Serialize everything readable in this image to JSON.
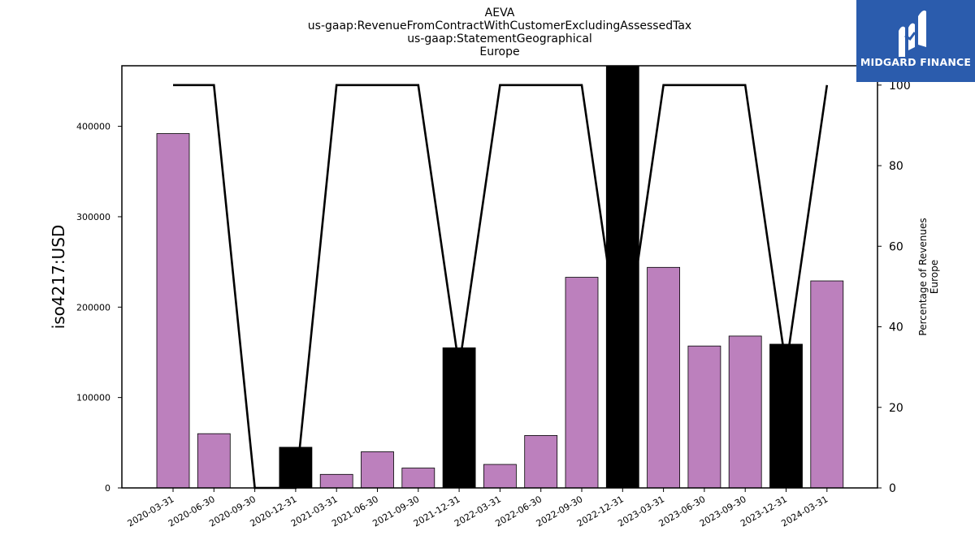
{
  "chart_data": {
    "type": "bar",
    "title": [
      "AEVA",
      "us-gaap:RevenueFromContractWithCustomerExcludingAssessedTax",
      "us-gaap:StatementGeographical",
      "Europe"
    ],
    "ylabel": "iso4217:USD",
    "y2label": [
      "Percentage of Revenues",
      "Europe"
    ],
    "ylim": [
      0,
      467000
    ],
    "y2lim": [
      0,
      104.8
    ],
    "yticks": [
      0,
      100000,
      200000,
      300000,
      400000
    ],
    "y2ticks": [
      0,
      20,
      40,
      60,
      80,
      100
    ],
    "categories": [
      "2020-03-31",
      "2020-06-30",
      "2020-09-30",
      "2020-12-31",
      "2021-03-31",
      "2021-06-30",
      "2021-09-30",
      "2021-12-31",
      "2022-03-31",
      "2022-06-30",
      "2022-09-30",
      "2022-12-31",
      "2023-03-31",
      "2023-06-30",
      "2023-09-30",
      "2023-12-31",
      "2024-03-31"
    ],
    "series": [
      {
        "kind": "bar",
        "values": [
          392000,
          60000,
          0,
          45000,
          15000,
          40000,
          22000,
          155000,
          26000,
          58000,
          233000,
          470000,
          244000,
          157000,
          168000,
          159000,
          229000
        ],
        "colors": [
          "#bc80bd",
          "#bc80bd",
          "#bc80bd",
          "#000000",
          "#bc80bd",
          "#bc80bd",
          "#bc80bd",
          "#000000",
          "#bc80bd",
          "#bc80bd",
          "#bc80bd",
          "#000000",
          "#bc80bd",
          "#bc80bd",
          "#bc80bd",
          "#000000",
          "#bc80bd"
        ]
      },
      {
        "kind": "line",
        "axis": "right",
        "values": [
          100,
          100,
          0,
          0,
          100,
          100,
          100,
          30,
          100,
          100,
          100,
          30,
          100,
          100,
          100,
          30,
          100
        ],
        "color": "#000000"
      }
    ],
    "grid": false,
    "legend": "none"
  },
  "logo": {
    "text": "MIDGARD FINANCE",
    "background": "#2b5cad"
  }
}
